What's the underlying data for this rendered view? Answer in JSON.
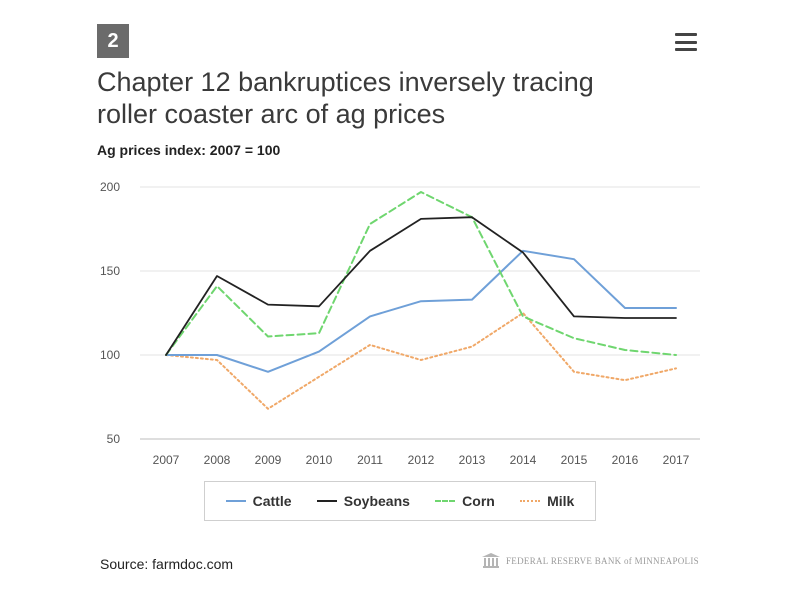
{
  "badge": "2",
  "title": "Chapter 12 bankruptices inversely tracing roller coaster arc of ag prices",
  "subtitle": "Ag prices index: 2007 = 100",
  "source": "Source: farmdoc.com",
  "publisher": "FEDERAL RESERVE BANK of MINNEAPOLIS",
  "chart_data": {
    "type": "line",
    "title": "Chapter 12 bankruptices inversely tracing roller coaster arc of ag prices",
    "subtitle": "Ag prices index: 2007 = 100",
    "x": [
      "2007",
      "2008",
      "2009",
      "2010",
      "2011",
      "2012",
      "2013",
      "2014",
      "2015",
      "2016",
      "2017"
    ],
    "ylim": [
      50,
      200
    ],
    "yticks": [
      "50",
      "100",
      "150",
      "200"
    ],
    "grid": true,
    "legend_position": "bottom",
    "series": [
      {
        "name": "Cattle",
        "color": "#6fa0d8",
        "dash": "solid",
        "values": [
          100,
          100,
          90,
          102,
          123,
          132,
          133,
          162,
          157,
          128,
          128
        ]
      },
      {
        "name": "Soybeans",
        "color": "#222222",
        "dash": "solid",
        "values": [
          100,
          147,
          130,
          129,
          162,
          181,
          182,
          161,
          123,
          122,
          122
        ]
      },
      {
        "name": "Corn",
        "color": "#6fd66f",
        "dash": "dashed",
        "values": [
          100,
          141,
          111,
          113,
          178,
          197,
          182,
          123,
          110,
          103,
          100
        ]
      },
      {
        "name": "Milk",
        "color": "#f0a868",
        "dash": "dotted",
        "values": [
          100,
          97,
          68,
          87,
          106,
          97,
          105,
          125,
          90,
          85,
          92
        ]
      }
    ]
  }
}
